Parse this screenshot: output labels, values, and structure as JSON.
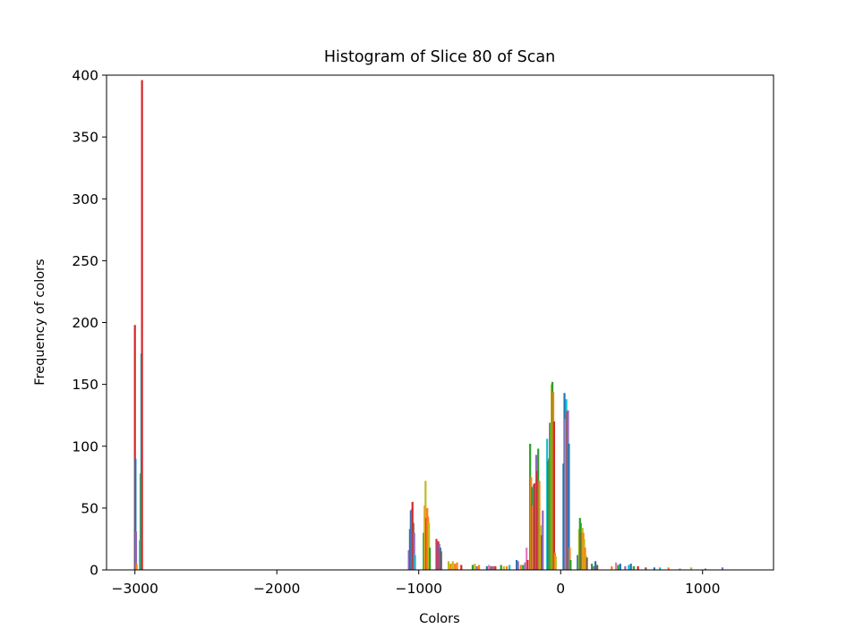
{
  "chart_data": {
    "type": "bar",
    "title": "Histogram of Slice 80 of Scan",
    "xlabel": "Colors",
    "ylabel": "Frequency of colors",
    "xlim": [
      -3200,
      1500
    ],
    "ylim": [
      0,
      400
    ],
    "x_ticks": [
      -3000,
      -2000,
      -1000,
      0,
      1000
    ],
    "x_tick_labels": [
      "−3000",
      "−2000",
      "−1000",
      "0",
      "1000"
    ],
    "y_ticks": [
      0,
      50,
      100,
      150,
      200,
      250,
      300,
      350,
      400
    ],
    "y_tick_labels": [
      "0",
      "50",
      "100",
      "150",
      "200",
      "250",
      "300",
      "350",
      "400"
    ],
    "grid": false,
    "colors": [
      "#1f77b4",
      "#ff7f0e",
      "#2ca02c",
      "#d62728",
      "#9467bd",
      "#8c564b",
      "#e377c2",
      "#7f7f7f",
      "#bcbd22",
      "#17becf"
    ],
    "bars": [
      {
        "x": -3000,
        "height": 198,
        "color": "#d62728"
      },
      {
        "x": -2996,
        "height": 90,
        "color": "#1f77b4"
      },
      {
        "x": -2992,
        "height": 31,
        "color": "#9467bd"
      },
      {
        "x": -2988,
        "height": 5,
        "color": "#ff7f0e"
      },
      {
        "x": -2965,
        "height": 24,
        "color": "#17becf"
      },
      {
        "x": -2960,
        "height": 78,
        "color": "#2ca02c"
      },
      {
        "x": -2955,
        "height": 175,
        "color": "#17becf"
      },
      {
        "x": -2950,
        "height": 396,
        "color": "#d62728"
      },
      {
        "x": -1070,
        "height": 16,
        "color": "#9467bd"
      },
      {
        "x": -1062,
        "height": 33,
        "color": "#1f77b4"
      },
      {
        "x": -1056,
        "height": 48,
        "color": "#1f77b4"
      },
      {
        "x": -1050,
        "height": 49,
        "color": "#9467bd"
      },
      {
        "x": -1044,
        "height": 55,
        "color": "#d62728"
      },
      {
        "x": -1038,
        "height": 38,
        "color": "#8c564b"
      },
      {
        "x": -1032,
        "height": 30,
        "color": "#9467bd"
      },
      {
        "x": -1026,
        "height": 12,
        "color": "#17becf"
      },
      {
        "x": -965,
        "height": 30,
        "color": "#2ca02c"
      },
      {
        "x": -958,
        "height": 52,
        "color": "#ff7f0e"
      },
      {
        "x": -952,
        "height": 72,
        "color": "#bcbd22"
      },
      {
        "x": -946,
        "height": 42,
        "color": "#d62728"
      },
      {
        "x": -940,
        "height": 50,
        "color": "#ff7f0e"
      },
      {
        "x": -934,
        "height": 43,
        "color": "#ff7f0e"
      },
      {
        "x": -928,
        "height": 38,
        "color": "#bcbd22"
      },
      {
        "x": -922,
        "height": 18,
        "color": "#2ca02c"
      },
      {
        "x": -875,
        "height": 25,
        "color": "#d62728"
      },
      {
        "x": -868,
        "height": 23,
        "color": "#9467bd"
      },
      {
        "x": -862,
        "height": 23,
        "color": "#d62728"
      },
      {
        "x": -855,
        "height": 21,
        "color": "#9467bd"
      },
      {
        "x": -848,
        "height": 18,
        "color": "#1f77b4"
      },
      {
        "x": -842,
        "height": 15,
        "color": "#8c564b"
      },
      {
        "x": -790,
        "height": 7,
        "color": "#bcbd22"
      },
      {
        "x": -775,
        "height": 5,
        "color": "#ff7f0e"
      },
      {
        "x": -760,
        "height": 7,
        "color": "#bcbd22"
      },
      {
        "x": -745,
        "height": 5,
        "color": "#ff7f0e"
      },
      {
        "x": -730,
        "height": 6,
        "color": "#ff7f0e"
      },
      {
        "x": -700,
        "height": 4,
        "color": "#d62728"
      },
      {
        "x": -620,
        "height": 4,
        "color": "#2ca02c"
      },
      {
        "x": -605,
        "height": 5,
        "color": "#bcbd22"
      },
      {
        "x": -590,
        "height": 3,
        "color": "#9467bd"
      },
      {
        "x": -575,
        "height": 4,
        "color": "#ff7f0e"
      },
      {
        "x": -520,
        "height": 3,
        "color": "#1f77b4"
      },
      {
        "x": -505,
        "height": 4,
        "color": "#e377c2"
      },
      {
        "x": -490,
        "height": 3,
        "color": "#8c564b"
      },
      {
        "x": -475,
        "height": 3,
        "color": "#9467bd"
      },
      {
        "x": -460,
        "height": 3,
        "color": "#d62728"
      },
      {
        "x": -420,
        "height": 4,
        "color": "#2ca02c"
      },
      {
        "x": -400,
        "height": 3,
        "color": "#bcbd22"
      },
      {
        "x": -380,
        "height": 3,
        "color": "#ff7f0e"
      },
      {
        "x": -360,
        "height": 4,
        "color": "#17becf"
      },
      {
        "x": -310,
        "height": 8,
        "color": "#1f77b4"
      },
      {
        "x": -300,
        "height": 7,
        "color": "#9467bd"
      },
      {
        "x": -280,
        "height": 4,
        "color": "#ff7f0e"
      },
      {
        "x": -265,
        "height": 4,
        "color": "#2ca02c"
      },
      {
        "x": -250,
        "height": 6,
        "color": "#9467bd"
      },
      {
        "x": -240,
        "height": 18,
        "color": "#e377c2"
      },
      {
        "x": -232,
        "height": 8,
        "color": "#d62728"
      },
      {
        "x": -215,
        "height": 102,
        "color": "#2ca02c"
      },
      {
        "x": -208,
        "height": 75,
        "color": "#ff7f0e"
      },
      {
        "x": -202,
        "height": 67,
        "color": "#2ca02c"
      },
      {
        "x": -196,
        "height": 52,
        "color": "#ff7f0e"
      },
      {
        "x": -190,
        "height": 69,
        "color": "#9467bd"
      },
      {
        "x": -184,
        "height": 70,
        "color": "#d62728"
      },
      {
        "x": -178,
        "height": 68,
        "color": "#8c564b"
      },
      {
        "x": -172,
        "height": 93,
        "color": "#9467bd"
      },
      {
        "x": -166,
        "height": 80,
        "color": "#d62728"
      },
      {
        "x": -158,
        "height": 98,
        "color": "#2ca02c"
      },
      {
        "x": -150,
        "height": 72,
        "color": "#ff7f0e"
      },
      {
        "x": -140,
        "height": 36,
        "color": "#bcbd22"
      },
      {
        "x": -133,
        "height": 28,
        "color": "#d62728"
      },
      {
        "x": -126,
        "height": 48,
        "color": "#9467bd"
      },
      {
        "x": -95,
        "height": 106,
        "color": "#17becf"
      },
      {
        "x": -88,
        "height": 88,
        "color": "#1f77b4"
      },
      {
        "x": -82,
        "height": 90,
        "color": "#2ca02c"
      },
      {
        "x": -76,
        "height": 119,
        "color": "#9467bd"
      },
      {
        "x": -70,
        "height": 119,
        "color": "#2ca02c"
      },
      {
        "x": -64,
        "height": 150,
        "color": "#bcbd22"
      },
      {
        "x": -58,
        "height": 152,
        "color": "#2ca02c"
      },
      {
        "x": -52,
        "height": 144,
        "color": "#ff7f0e"
      },
      {
        "x": -46,
        "height": 120,
        "color": "#d62728"
      },
      {
        "x": -40,
        "height": 14,
        "color": "#ff7f0e"
      },
      {
        "x": -34,
        "height": 11,
        "color": "#bcbd22"
      },
      {
        "x": 20,
        "height": 86,
        "color": "#1f77b4"
      },
      {
        "x": 27,
        "height": 143,
        "color": "#1f77b4"
      },
      {
        "x": 34,
        "height": 122,
        "color": "#e377c2"
      },
      {
        "x": 40,
        "height": 138,
        "color": "#17becf"
      },
      {
        "x": 46,
        "height": 128,
        "color": "#d62728"
      },
      {
        "x": 52,
        "height": 129,
        "color": "#9467bd"
      },
      {
        "x": 58,
        "height": 102,
        "color": "#1f77b4"
      },
      {
        "x": 64,
        "height": 18,
        "color": "#ff7f0e"
      },
      {
        "x": 70,
        "height": 8,
        "color": "#2ca02c"
      },
      {
        "x": 120,
        "height": 12,
        "color": "#1f77b4"
      },
      {
        "x": 130,
        "height": 33,
        "color": "#bcbd22"
      },
      {
        "x": 136,
        "height": 42,
        "color": "#2ca02c"
      },
      {
        "x": 142,
        "height": 38,
        "color": "#2ca02c"
      },
      {
        "x": 148,
        "height": 30,
        "color": "#d62728"
      },
      {
        "x": 154,
        "height": 34,
        "color": "#bcbd22"
      },
      {
        "x": 160,
        "height": 30,
        "color": "#ff7f0e"
      },
      {
        "x": 166,
        "height": 25,
        "color": "#bcbd22"
      },
      {
        "x": 172,
        "height": 18,
        "color": "#ff7f0e"
      },
      {
        "x": 178,
        "height": 12,
        "color": "#bcbd22"
      },
      {
        "x": 185,
        "height": 10,
        "color": "#8c564b"
      },
      {
        "x": 220,
        "height": 5,
        "color": "#2ca02c"
      },
      {
        "x": 232,
        "height": 3,
        "color": "#9467bd"
      },
      {
        "x": 245,
        "height": 7,
        "color": "#1f77b4"
      },
      {
        "x": 258,
        "height": 4,
        "color": "#8c564b"
      },
      {
        "x": 360,
        "height": 3,
        "color": "#ff7f0e"
      },
      {
        "x": 390,
        "height": 6,
        "color": "#e377c2"
      },
      {
        "x": 405,
        "height": 4,
        "color": "#2ca02c"
      },
      {
        "x": 420,
        "height": 5,
        "color": "#1f77b4"
      },
      {
        "x": 455,
        "height": 3,
        "color": "#9467bd"
      },
      {
        "x": 480,
        "height": 4,
        "color": "#17becf"
      },
      {
        "x": 495,
        "height": 5,
        "color": "#1f77b4"
      },
      {
        "x": 515,
        "height": 3,
        "color": "#2ca02c"
      },
      {
        "x": 545,
        "height": 3,
        "color": "#d62728"
      },
      {
        "x": 600,
        "height": 2,
        "color": "#8c564b"
      },
      {
        "x": 660,
        "height": 2,
        "color": "#1f77b4"
      },
      {
        "x": 700,
        "height": 2,
        "color": "#17becf"
      },
      {
        "x": 760,
        "height": 2,
        "color": "#ff7f0e"
      },
      {
        "x": 840,
        "height": 1,
        "color": "#7f7f7f"
      },
      {
        "x": 920,
        "height": 2,
        "color": "#bcbd22"
      },
      {
        "x": 1020,
        "height": 1,
        "color": "#1f77b4"
      },
      {
        "x": 1140,
        "height": 2,
        "color": "#9467bd"
      }
    ]
  }
}
